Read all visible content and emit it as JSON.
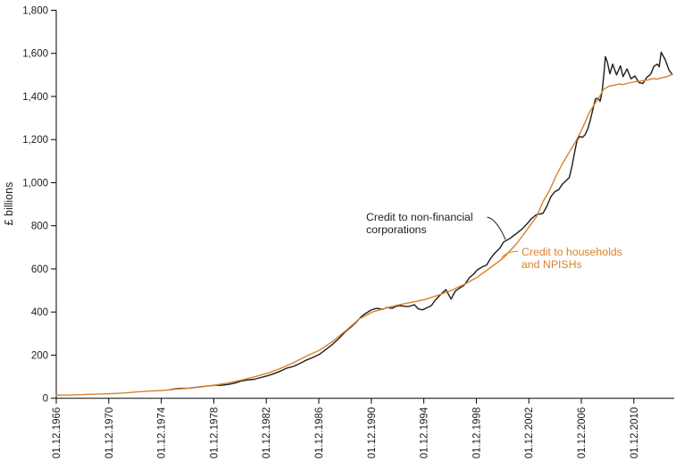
{
  "chart_data": {
    "type": "line",
    "title": "",
    "ylabel": "£ billions",
    "grid": false,
    "legend_position": "inline-annotations",
    "y_axis": {
      "min": 0,
      "max": 1800,
      "step": 200,
      "labels": [
        "0",
        "200",
        "400",
        "600",
        "800",
        "1,000",
        "1,200",
        "1,400",
        "1,600",
        "1,800"
      ]
    },
    "x_axis": {
      "labels": [
        "01.12.1966",
        "01.12.1970",
        "01.12.1974",
        "01.12.1978",
        "01.12.1982",
        "01.12.1986",
        "01.12.1990",
        "01.12.1994",
        "01.12.1998",
        "01.12.2002",
        "01.12.2006",
        "01.12.2010"
      ],
      "dates": [
        1966.92,
        1970.92,
        1974.92,
        1978.92,
        1982.92,
        1986.92,
        1990.92,
        1994.92,
        1998.92,
        2002.92,
        2006.92,
        2010.92
      ],
      "range": [
        1966.92,
        2014.0
      ]
    },
    "series": [
      {
        "name": "Credit to non-financial corporations",
        "color": "#1d1d1b",
        "points": [
          [
            1975.5,
            39
          ],
          [
            1976,
            44
          ],
          [
            1976.5,
            46
          ],
          [
            1977,
            47
          ],
          [
            1977.5,
            50
          ],
          [
            1978,
            54
          ],
          [
            1978.5,
            57
          ],
          [
            1979,
            60
          ],
          [
            1979.5,
            60
          ],
          [
            1980,
            64
          ],
          [
            1980.5,
            70
          ],
          [
            1981,
            80
          ],
          [
            1981.5,
            85
          ],
          [
            1982,
            88
          ],
          [
            1982.5,
            96
          ],
          [
            1983,
            104
          ],
          [
            1983.5,
            114
          ],
          [
            1984,
            126
          ],
          [
            1984.5,
            140
          ],
          [
            1985,
            148
          ],
          [
            1985.5,
            162
          ],
          [
            1986,
            178
          ],
          [
            1986.5,
            190
          ],
          [
            1987,
            205
          ],
          [
            1987.5,
            228
          ],
          [
            1988,
            252
          ],
          [
            1988.5,
            280
          ],
          [
            1989,
            312
          ],
          [
            1989.4,
            332
          ],
          [
            1989.8,
            355
          ],
          [
            1990.1,
            375
          ],
          [
            1990.4,
            390
          ],
          [
            1990.9,
            409
          ],
          [
            1991.3,
            417
          ],
          [
            1991.8,
            413
          ],
          [
            1992.1,
            421
          ],
          [
            1992.5,
            417
          ],
          [
            1992.8,
            426
          ],
          [
            1993.1,
            430
          ],
          [
            1993.5,
            426
          ],
          [
            1993.8,
            426
          ],
          [
            1994.2,
            434
          ],
          [
            1994.5,
            415
          ],
          [
            1994.8,
            410
          ],
          [
            1995.1,
            418
          ],
          [
            1995.5,
            430
          ],
          [
            1995.8,
            455
          ],
          [
            1996.1,
            475
          ],
          [
            1996.6,
            504
          ],
          [
            1997,
            460
          ],
          [
            1997.3,
            496
          ],
          [
            1997.6,
            509
          ],
          [
            1998,
            525
          ],
          [
            1998.4,
            560
          ],
          [
            1998.7,
            575
          ],
          [
            1999,
            596
          ],
          [
            1999.4,
            610
          ],
          [
            1999.7,
            618
          ],
          [
            2000,
            648
          ],
          [
            2000.3,
            672
          ],
          [
            2000.7,
            695
          ],
          [
            2001,
            725
          ],
          [
            2001.5,
            742
          ],
          [
            2002,
            765
          ],
          [
            2002.4,
            785
          ],
          [
            2002.8,
            810
          ],
          [
            2003.1,
            832
          ],
          [
            2003.5,
            852
          ],
          [
            2004,
            858
          ],
          [
            2004.3,
            892
          ],
          [
            2004.6,
            935
          ],
          [
            2004.9,
            958
          ],
          [
            2005.2,
            968
          ],
          [
            2005.5,
            995
          ],
          [
            2005.8,
            1012
          ],
          [
            2006,
            1024
          ],
          [
            2006.2,
            1075
          ],
          [
            2006.4,
            1140
          ],
          [
            2006.6,
            1198
          ],
          [
            2006.8,
            1215
          ],
          [
            2007,
            1210
          ],
          [
            2007.2,
            1222
          ],
          [
            2007.4,
            1248
          ],
          [
            2007.6,
            1290
          ],
          [
            2007.8,
            1340
          ],
          [
            2008,
            1390
          ],
          [
            2008.2,
            1392
          ],
          [
            2008.35,
            1378
          ],
          [
            2008.5,
            1420
          ],
          [
            2008.65,
            1510
          ],
          [
            2008.75,
            1585
          ],
          [
            2008.9,
            1560
          ],
          [
            2009.1,
            1505
          ],
          [
            2009.3,
            1550
          ],
          [
            2009.6,
            1500
          ],
          [
            2009.9,
            1542
          ],
          [
            2010.1,
            1492
          ],
          [
            2010.4,
            1528
          ],
          [
            2010.7,
            1482
          ],
          [
            2011,
            1495
          ],
          [
            2011.3,
            1465
          ],
          [
            2011.6,
            1460
          ],
          [
            2011.9,
            1488
          ],
          [
            2012.2,
            1503
          ],
          [
            2012.45,
            1540
          ],
          [
            2012.7,
            1550
          ],
          [
            2012.85,
            1538
          ],
          [
            2013,
            1605
          ],
          [
            2013.3,
            1572
          ],
          [
            2013.6,
            1522
          ],
          [
            2013.85,
            1502
          ]
        ]
      },
      {
        "name": "Credit to households and NPISHs",
        "color": "#d9822a",
        "points": [
          [
            1966.92,
            14
          ],
          [
            1968,
            15
          ],
          [
            1969,
            17
          ],
          [
            1970,
            19
          ],
          [
            1971,
            21
          ],
          [
            1972,
            24
          ],
          [
            1973,
            29
          ],
          [
            1974,
            33
          ],
          [
            1975,
            36
          ],
          [
            1976,
            42
          ],
          [
            1977,
            46
          ],
          [
            1978,
            53
          ],
          [
            1979,
            61
          ],
          [
            1980,
            71
          ],
          [
            1981,
            84
          ],
          [
            1982,
            99
          ],
          [
            1983,
            116
          ],
          [
            1984,
            138
          ],
          [
            1985,
            165
          ],
          [
            1986,
            196
          ],
          [
            1987,
            224
          ],
          [
            1988,
            265
          ],
          [
            1989,
            315
          ],
          [
            1990,
            368
          ],
          [
            1991,
            400
          ],
          [
            1992,
            418
          ],
          [
            1993,
            433
          ],
          [
            1994,
            445
          ],
          [
            1995,
            458
          ],
          [
            1996,
            478
          ],
          [
            1997,
            500
          ],
          [
            1998,
            528
          ],
          [
            1999,
            562
          ],
          [
            2000,
            606
          ],
          [
            2001,
            652
          ],
          [
            2002,
            718
          ],
          [
            2003,
            800
          ],
          [
            2003.5,
            842
          ],
          [
            2004,
            912
          ],
          [
            2004.5,
            965
          ],
          [
            2005,
            1032
          ],
          [
            2005.5,
            1090
          ],
          [
            2006,
            1142
          ],
          [
            2006.5,
            1192
          ],
          [
            2007,
            1252
          ],
          [
            2007.5,
            1322
          ],
          [
            2008,
            1372
          ],
          [
            2008.3,
            1398
          ],
          [
            2008.6,
            1432
          ],
          [
            2009,
            1447
          ],
          [
            2009.4,
            1452
          ],
          [
            2009.8,
            1458
          ],
          [
            2010.1,
            1455
          ],
          [
            2010.5,
            1462
          ],
          [
            2011,
            1468
          ],
          [
            2011.5,
            1472
          ],
          [
            2012,
            1477
          ],
          [
            2012.4,
            1483
          ],
          [
            2012.7,
            1480
          ],
          [
            2013,
            1486
          ],
          [
            2013.4,
            1492
          ],
          [
            2013.85,
            1502
          ]
        ]
      }
    ],
    "annotations": [
      {
        "line1": "Credit to non-financial",
        "line2": "corporations"
      },
      {
        "line1": "Credit to households",
        "line2": "and NPISHs"
      }
    ]
  }
}
